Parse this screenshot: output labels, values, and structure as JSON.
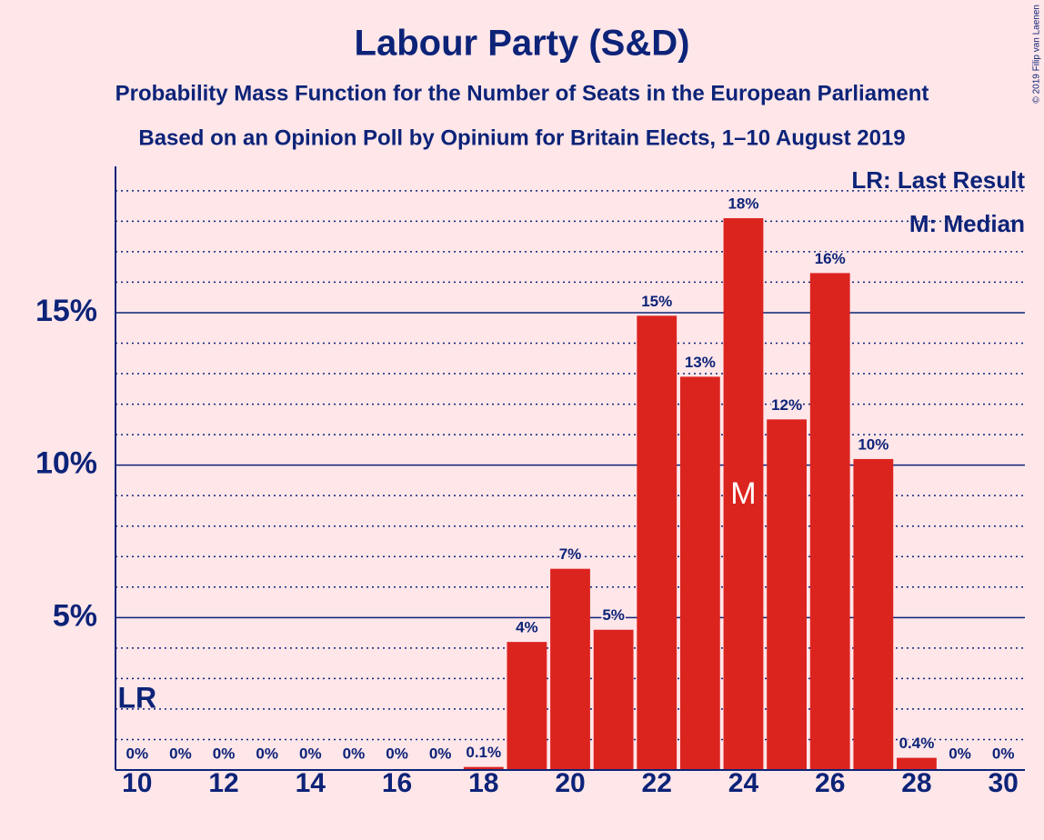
{
  "chart_data": {
    "type": "bar",
    "title": "Labour Party (S&D)",
    "subtitle": "Probability Mass Function for the Number of Seats in the European Parliament",
    "subtitle2": "Based on an Opinion Poll by Opinium for Britain Elects, 1–10 August 2019",
    "copyright": "© 2019 Filip van Laenen",
    "x": [
      10,
      11,
      12,
      13,
      14,
      15,
      16,
      17,
      18,
      19,
      20,
      21,
      22,
      23,
      24,
      25,
      26,
      27,
      28,
      29,
      30
    ],
    "values": [
      0,
      0,
      0,
      0,
      0,
      0,
      0,
      0,
      0.1,
      4.2,
      6.6,
      4.6,
      14.9,
      12.9,
      18.1,
      11.5,
      16.3,
      10.2,
      0.4,
      0,
      0
    ],
    "value_labels": [
      "0%",
      "0%",
      "0%",
      "0%",
      "0%",
      "0%",
      "0%",
      "0%",
      "0.1%",
      "4%",
      "7%",
      "5%",
      "15%",
      "13%",
      "18%",
      "12%",
      "16%",
      "10%",
      "0.4%",
      "0%",
      "0%"
    ],
    "color": "#dc241f",
    "xlim": [
      9.5,
      30.5
    ],
    "xticks": [
      10,
      12,
      14,
      16,
      18,
      20,
      22,
      24,
      26,
      28,
      30
    ],
    "ylim": [
      0,
      19.8
    ],
    "yticks": [
      {
        "value": 5,
        "label": "5%"
      },
      {
        "value": 10,
        "label": "10%"
      },
      {
        "value": 15,
        "label": "15%"
      }
    ],
    "minor_yticks": [
      1,
      2,
      3,
      4,
      6,
      7,
      8,
      9,
      11,
      12,
      13,
      14,
      16,
      17,
      18,
      19
    ],
    "grid": true,
    "last_result": {
      "x": 10,
      "label": "LR",
      "legend": "LR: Last Result"
    },
    "median": {
      "x": 24,
      "label": "M",
      "legend": "M: Median"
    },
    "legend_position": "top-right"
  }
}
